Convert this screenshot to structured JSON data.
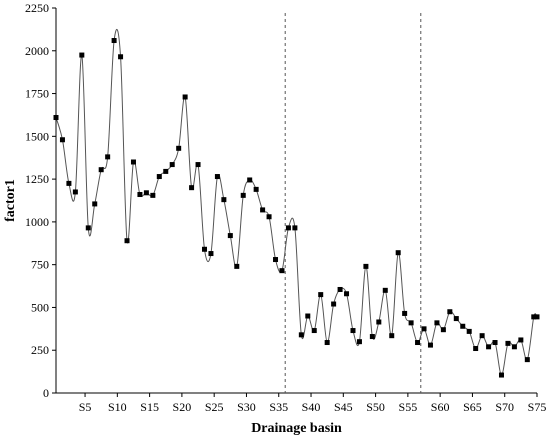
{
  "chart_data": {
    "type": "line",
    "xlabel": "Drainage basin",
    "ylabel": "factor1",
    "ylim": [
      0,
      2250
    ],
    "xlim": [
      0.5,
      75
    ],
    "y_ticks": [
      0,
      250,
      500,
      750,
      1000,
      1250,
      1500,
      1750,
      2000,
      2250
    ],
    "y_tick_labels": [
      "0",
      "250",
      "500",
      "750",
      "1000",
      "1250",
      "1500",
      "1750",
      "2000",
      "2250"
    ],
    "x_ticks": [
      5,
      10,
      15,
      20,
      25,
      30,
      35,
      40,
      45,
      50,
      55,
      60,
      65,
      70,
      75
    ],
    "x_tick_labels": [
      "S5",
      "S10",
      "S15",
      "S20",
      "S25",
      "S30",
      "S35",
      "S40",
      "S45",
      "S50",
      "S55",
      "S60",
      "S65",
      "S70",
      "S75"
    ],
    "dividers": [
      36,
      57
    ],
    "markers": "square",
    "grid": false,
    "series": [
      {
        "x": [
          0.5,
          1.5,
          2.5,
          3.5,
          4.5,
          5.5,
          6.5,
          7.5,
          8.5,
          9.5,
          10.5,
          11.5,
          12.5,
          13.5,
          14.5,
          15.5,
          16.5,
          17.5,
          18.5,
          19.5,
          20.5,
          21.5,
          22.5,
          23.5,
          24.5,
          25.5,
          26.5,
          27.5,
          28.5,
          29.5,
          30.5,
          31.5,
          32.5,
          33.5,
          34.5,
          35.5,
          36.5,
          37.5,
          38.5,
          39.5,
          40.5,
          41.5,
          42.5,
          43.5,
          44.5,
          45.5,
          46.5,
          47.5,
          48.5,
          49.5,
          50.5,
          51.5,
          52.5,
          53.5,
          54.5,
          55.5,
          56.5,
          57.5,
          58.5,
          59.5,
          60.5,
          61.5,
          62.5,
          63.5,
          64.5,
          65.5,
          66.5,
          67.5,
          68.5,
          69.5,
          70.5,
          71.5,
          72.5,
          73.5,
          74.5,
          75
        ],
        "values": [
          1610,
          1480,
          1225,
          1175,
          1975,
          965,
          1105,
          1305,
          1380,
          2060,
          1965,
          890,
          1350,
          1160,
          1170,
          1155,
          1265,
          1295,
          1335,
          1430,
          1730,
          1200,
          1335,
          840,
          815,
          1265,
          1130,
          920,
          740,
          1155,
          1245,
          1190,
          1070,
          1030,
          780,
          715,
          965,
          965,
          340,
          450,
          365,
          575,
          295,
          520,
          605,
          580,
          365,
          300,
          740,
          330,
          415,
          600,
          335,
          820,
          465,
          410,
          295,
          375,
          280,
          410,
          370,
          475,
          435,
          390,
          360,
          260,
          335,
          270,
          295,
          105,
          290,
          270,
          310,
          195,
          445,
          445
        ]
      }
    ]
  }
}
